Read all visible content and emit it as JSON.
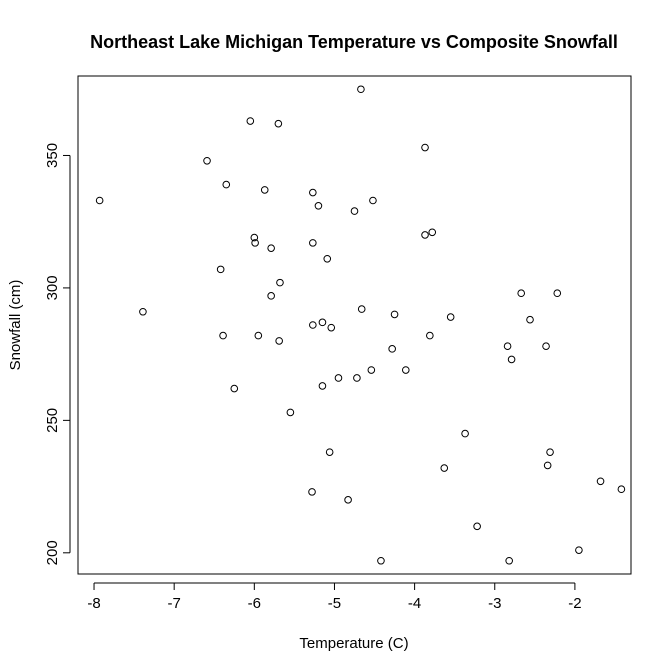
{
  "chart_data": {
    "type": "scatter",
    "title": "Northeast Lake Michigan Temperature vs Composite Snowfall",
    "xlabel": "Temperature (C)",
    "ylabel": "Snowfall (cm)",
    "xlim": [
      -8.2,
      -1.3
    ],
    "ylim": [
      192,
      380
    ],
    "x_ticks": [
      -8,
      -7,
      -6,
      -5,
      -4,
      -3,
      -2
    ],
    "y_ticks": [
      200,
      250,
      300,
      350
    ],
    "x_tick_labels": [
      "-8",
      "-7",
      "-6",
      "-5",
      "-4",
      "-3",
      "-2"
    ],
    "y_tick_labels": [
      "200",
      "250",
      "300",
      "350"
    ],
    "grid": false,
    "legend": "none",
    "marker": "open-circle",
    "marker_color": "#000000",
    "points": [
      {
        "x": -7.93,
        "y": 333
      },
      {
        "x": -7.39,
        "y": 291
      },
      {
        "x": -6.59,
        "y": 348
      },
      {
        "x": -6.42,
        "y": 307
      },
      {
        "x": -6.39,
        "y": 282
      },
      {
        "x": -6.35,
        "y": 339
      },
      {
        "x": -6.25,
        "y": 262
      },
      {
        "x": -6.05,
        "y": 363
      },
      {
        "x": -6.0,
        "y": 319
      },
      {
        "x": -5.99,
        "y": 317
      },
      {
        "x": -5.95,
        "y": 282
      },
      {
        "x": -5.87,
        "y": 337
      },
      {
        "x": -5.79,
        "y": 315
      },
      {
        "x": -5.79,
        "y": 297
      },
      {
        "x": -5.7,
        "y": 362
      },
      {
        "x": -5.68,
        "y": 302
      },
      {
        "x": -5.69,
        "y": 280
      },
      {
        "x": -5.55,
        "y": 253
      },
      {
        "x": -5.28,
        "y": 223
      },
      {
        "x": -5.27,
        "y": 336
      },
      {
        "x": -5.27,
        "y": 317
      },
      {
        "x": -5.27,
        "y": 286
      },
      {
        "x": -5.2,
        "y": 331
      },
      {
        "x": -5.15,
        "y": 287
      },
      {
        "x": -5.15,
        "y": 263
      },
      {
        "x": -5.09,
        "y": 311
      },
      {
        "x": -5.06,
        "y": 238
      },
      {
        "x": -5.04,
        "y": 285
      },
      {
        "x": -4.95,
        "y": 266
      },
      {
        "x": -4.83,
        "y": 220
      },
      {
        "x": -4.75,
        "y": 329
      },
      {
        "x": -4.72,
        "y": 266
      },
      {
        "x": -4.67,
        "y": 375
      },
      {
        "x": -4.66,
        "y": 292
      },
      {
        "x": -4.54,
        "y": 269
      },
      {
        "x": -4.52,
        "y": 333
      },
      {
        "x": -4.42,
        "y": 197
      },
      {
        "x": -4.28,
        "y": 277
      },
      {
        "x": -4.25,
        "y": 290
      },
      {
        "x": -4.11,
        "y": 269
      },
      {
        "x": -3.87,
        "y": 353
      },
      {
        "x": -3.87,
        "y": 320
      },
      {
        "x": -3.81,
        "y": 282
      },
      {
        "x": -3.78,
        "y": 321
      },
      {
        "x": -3.63,
        "y": 232
      },
      {
        "x": -3.55,
        "y": 289
      },
      {
        "x": -3.37,
        "y": 245
      },
      {
        "x": -3.22,
        "y": 210
      },
      {
        "x": -2.84,
        "y": 278
      },
      {
        "x": -2.82,
        "y": 197
      },
      {
        "x": -2.79,
        "y": 273
      },
      {
        "x": -2.67,
        "y": 298
      },
      {
        "x": -2.56,
        "y": 288
      },
      {
        "x": -2.36,
        "y": 278
      },
      {
        "x": -2.34,
        "y": 233
      },
      {
        "x": -2.31,
        "y": 238
      },
      {
        "x": -2.22,
        "y": 298
      },
      {
        "x": -1.95,
        "y": 201
      },
      {
        "x": -1.68,
        "y": 227
      },
      {
        "x": -1.42,
        "y": 224
      }
    ]
  }
}
